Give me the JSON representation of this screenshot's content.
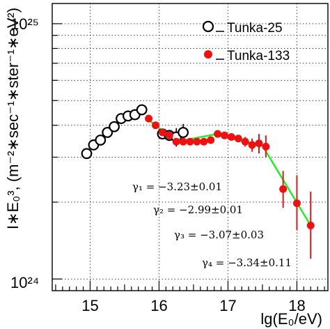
{
  "chart_data": {
    "type": "scatter",
    "x_axis": {
      "label": "lg(E₀/eV)",
      "range": [
        14.45,
        18.45
      ],
      "ticks": [
        "15",
        "16",
        "17",
        "18"
      ]
    },
    "y_axis": {
      "label": "I∗E₀³, (m⁻²∗sec⁻¹∗ster⁻¹∗eV²)",
      "scale": "log",
      "range": [
        9e+23,
        1.2e+25
      ],
      "tick_labels": [
        "10²⁵",
        "10²⁴"
      ]
    },
    "grid": true,
    "legend_position": "top-right",
    "series": [
      {
        "name": "Tunka-25",
        "marker": "open-circle",
        "color": "#000000",
        "points": [
          {
            "x": 14.95,
            "y": 3.1e+24
          },
          {
            "x": 15.05,
            "y": 3.35e+24
          },
          {
            "x": 15.15,
            "y": 3.5e+24
          },
          {
            "x": 15.25,
            "y": 3.75e+24
          },
          {
            "x": 15.35,
            "y": 3.95e+24
          },
          {
            "x": 15.45,
            "y": 4.25e+24
          },
          {
            "x": 15.55,
            "y": 4.35e+24
          },
          {
            "x": 15.65,
            "y": 4.4e+24
          },
          {
            "x": 15.75,
            "y": 4.6e+24
          },
          {
            "x": 16.05,
            "y": 3.7e+24
          },
          {
            "x": 16.15,
            "y": 3.65e+24,
            "err_low": 3.5e+24,
            "err_high": 3.8e+24
          },
          {
            "x": 16.25,
            "y": 3.6e+24,
            "err_low": 3.3e+24,
            "err_high": 3.9e+24
          },
          {
            "x": 16.35,
            "y": 3.75e+24,
            "err_low": 3.55e+24,
            "err_high": 4.05e+24
          }
        ]
      },
      {
        "name": "Tunka-133",
        "marker": "filled-circle",
        "color": "#ee1111",
        "points": [
          {
            "x": 15.85,
            "y": 4.25e+24
          },
          {
            "x": 15.95,
            "y": 4e+24
          },
          {
            "x": 16.05,
            "y": 3.75e+24
          },
          {
            "x": 16.15,
            "y": 3.65e+24
          },
          {
            "x": 16.25,
            "y": 3.45e+24
          },
          {
            "x": 16.35,
            "y": 3.45e+24
          },
          {
            "x": 16.45,
            "y": 3.45e+24
          },
          {
            "x": 16.55,
            "y": 3.45e+24
          },
          {
            "x": 16.65,
            "y": 3.45e+24
          },
          {
            "x": 16.75,
            "y": 3.5e+24
          },
          {
            "x": 16.85,
            "y": 3.7e+24
          },
          {
            "x": 16.95,
            "y": 3.65e+24
          },
          {
            "x": 17.05,
            "y": 3.6e+24
          },
          {
            "x": 17.15,
            "y": 3.55e+24
          },
          {
            "x": 17.25,
            "y": 3.45e+24,
            "err_low": 3.3e+24,
            "err_high": 3.6e+24
          },
          {
            "x": 17.35,
            "y": 3.35e+24,
            "err_low": 3.15e+24,
            "err_high": 3.55e+24
          },
          {
            "x": 17.45,
            "y": 3.4e+24,
            "err_low": 3.1e+24,
            "err_high": 3.7e+24
          },
          {
            "x": 17.55,
            "y": 3.3e+24,
            "err_low": 3e+24,
            "err_high": 3.65e+24
          },
          {
            "x": 17.8,
            "y": 2.25e+24,
            "err_low": 1.9e+24,
            "err_high": 2.65e+24
          },
          {
            "x": 18.0,
            "y": 1.98e+24,
            "err_low": 1.55e+24,
            "err_high": 2.55e+24
          },
          {
            "x": 18.2,
            "y": 1.62e+24,
            "err_low": 1.2e+24,
            "err_high": 2.2e+24
          }
        ]
      }
    ],
    "fit": {
      "color": "#22ee22",
      "x": [
        15.85,
        16.25,
        16.8,
        17.5,
        18.2
      ],
      "y": [
        4.2e+24,
        3.45e+24,
        3.68e+24,
        3.33e+24,
        1.62e+24
      ]
    },
    "annotations": [
      {
        "text": "γ₁ = −3.23±0.01"
      },
      {
        "text": "γ₂ = −2.99±0.01"
      },
      {
        "text": "γ₃ = −3.07±0.03"
      },
      {
        "text": "γ₄ = −3.34±0.11"
      }
    ]
  }
}
